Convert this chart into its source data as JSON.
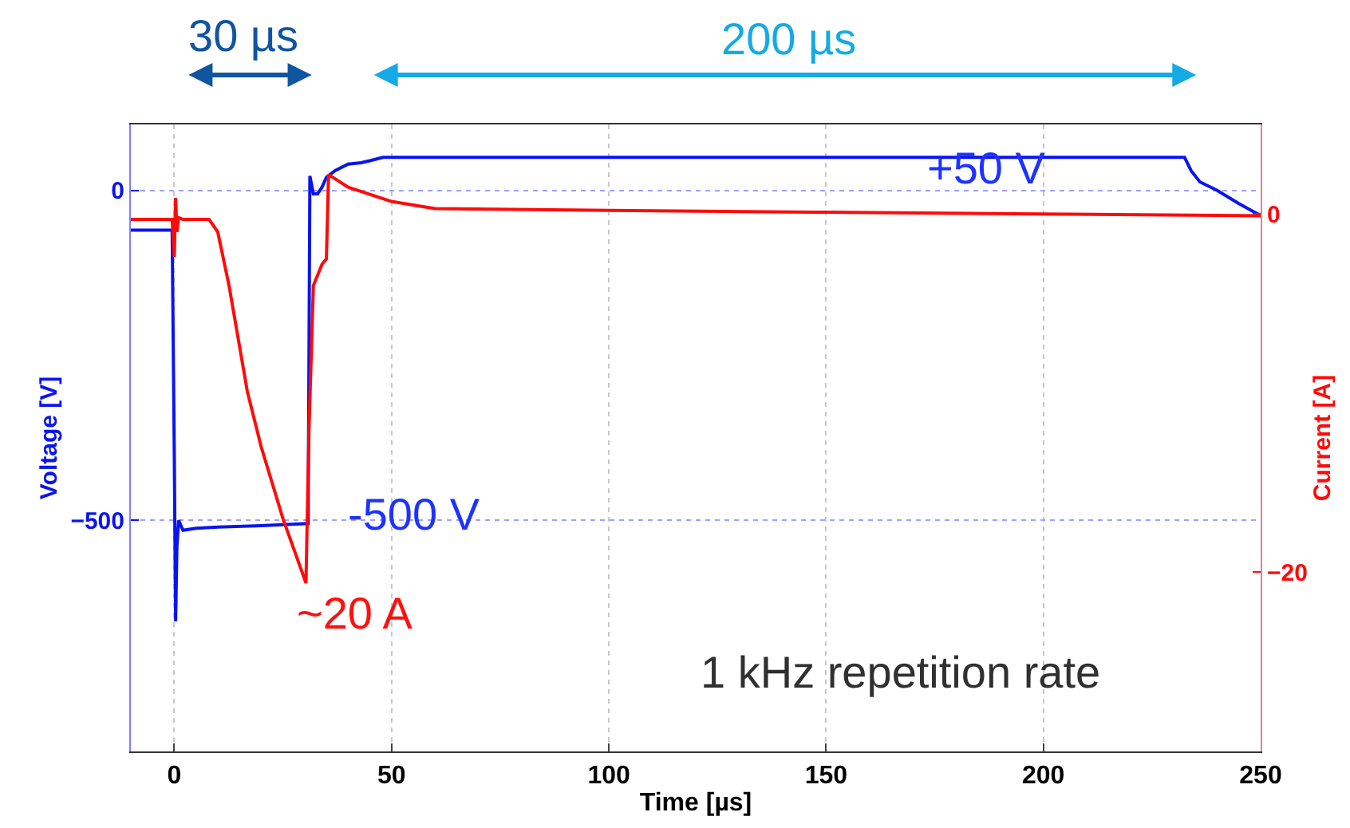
{
  "chart_data": {
    "type": "line",
    "xlabel": "Time [µs]",
    "ylabel": "Voltage [V]",
    "y2label": "Current [A]",
    "xlim": [
      -10,
      250
    ],
    "xticks": [
      0,
      50,
      100,
      150,
      200,
      250
    ],
    "ylim": [
      -850,
      100
    ],
    "yticks": [
      -500,
      0
    ],
    "y2lim": [
      -30,
      5
    ],
    "y2ticks": [
      -20,
      0
    ],
    "grid": true,
    "series": [
      {
        "color": "#0a14f0",
        "x": [
          -10,
          -0.5,
          0,
          0.3,
          0.6,
          1,
          2,
          5,
          10,
          20,
          30,
          30.8,
          31.2,
          32,
          33,
          34,
          35,
          37,
          40,
          43,
          45,
          48,
          50,
          100,
          150,
          200,
          232.5,
          234,
          236,
          240,
          245,
          250
        ],
        "values": [
          -60,
          -60,
          -400,
          -653,
          -540,
          -500,
          -515,
          -512,
          -510,
          -508,
          -505,
          -505,
          22,
          -5,
          -5,
          5,
          20,
          30,
          40,
          42,
          45,
          50,
          50,
          50,
          50,
          50,
          50,
          30,
          13,
          0,
          -20,
          -38
        ]
      },
      {
        "color": "#ff0a0a",
        "axis": "y2",
        "x": [
          -10,
          -0.5,
          0,
          0.3,
          0.6,
          1,
          2,
          5,
          8,
          10,
          12.6,
          16.8,
          20,
          25,
          30.3,
          31,
          32,
          34,
          35,
          35.5,
          40,
          50,
          60,
          100,
          150,
          200,
          250
        ],
        "values": [
          -0.3,
          -0.3,
          -2.4,
          0.9,
          -1,
          -0.2,
          -0.3,
          -0.3,
          -0.3,
          -1,
          -4,
          -9.9,
          -13,
          -17,
          -20.6,
          -12,
          -4,
          -2.8,
          -2.5,
          2.2,
          1.5,
          0.7,
          0.3,
          0.2,
          0.1,
          0,
          -0.1
        ]
      }
    ],
    "annotations": [
      "30 µs",
      "200 µs",
      "+50 V",
      "-500 V",
      "~20 A",
      "1 kHz repetition rate"
    ]
  }
}
